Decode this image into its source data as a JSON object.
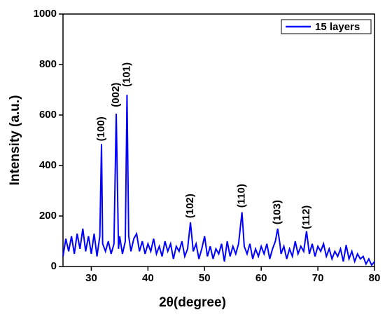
{
  "chart_data": {
    "type": "line",
    "xlabel": "2θ(degree)",
    "ylabel": "Intensity (a.u.)",
    "xlim": [
      25,
      80
    ],
    "xticks": [
      30,
      40,
      50,
      60,
      70,
      80
    ],
    "ylim": [
      0,
      1000
    ],
    "yticks": [
      0,
      200,
      400,
      600,
      800,
      1000
    ],
    "legend": "upper right",
    "series": [
      {
        "name": "15 layers",
        "color": "#0000ff",
        "x": [
          25,
          25.5,
          26,
          26.5,
          27,
          27.5,
          28,
          28.5,
          29,
          29.5,
          30,
          30.5,
          31,
          31.5,
          31.8,
          32,
          32.5,
          33,
          33.5,
          34,
          34.4,
          34.8,
          35,
          35.5,
          36,
          36.3,
          36.6,
          37,
          37.5,
          38,
          38.5,
          39,
          39.5,
          40,
          40.5,
          41,
          41.5,
          42,
          42.5,
          43,
          43.5,
          44,
          44.5,
          45,
          45.5,
          46,
          46.5,
          47,
          47.5,
          48,
          48.5,
          49,
          49.5,
          50,
          50.5,
          51,
          51.5,
          52,
          52.5,
          53,
          53.5,
          54,
          54.5,
          55,
          55.5,
          56,
          56.6,
          57,
          57.5,
          58,
          58.5,
          59,
          59.5,
          60,
          60.5,
          61,
          61.5,
          62,
          62.5,
          62.9,
          63.3,
          63.5,
          64,
          64.5,
          65,
          65.5,
          66,
          66.5,
          67,
          67.5,
          68,
          68.5,
          69,
          69.5,
          70,
          70.5,
          71,
          71.5,
          72,
          72.5,
          73,
          73.5,
          74,
          74.5,
          75,
          75.5,
          76,
          76.5,
          77,
          77.5,
          78,
          78.5,
          79,
          79.5,
          80
        ],
        "values": [
          40,
          110,
          60,
          120,
          50,
          130,
          70,
          150,
          60,
          120,
          50,
          130,
          40,
          120,
          485,
          90,
          60,
          100,
          50,
          90,
          605,
          70,
          120,
          50,
          100,
          680,
          120,
          60,
          110,
          130,
          60,
          100,
          50,
          90,
          60,
          110,
          50,
          80,
          40,
          100,
          60,
          90,
          30,
          80,
          60,
          100,
          40,
          70,
          175,
          60,
          90,
          30,
          70,
          120,
          40,
          80,
          30,
          70,
          50,
          90,
          20,
          100,
          40,
          80,
          50,
          90,
          215,
          80,
          50,
          90,
          30,
          70,
          40,
          80,
          50,
          90,
          30,
          70,
          100,
          150,
          90,
          50,
          80,
          30,
          70,
          40,
          100,
          50,
          80,
          60,
          140,
          50,
          90,
          40,
          80,
          60,
          90,
          40,
          70,
          30,
          60,
          40,
          70,
          20,
          85,
          30,
          60,
          20,
          50,
          30,
          40,
          10,
          30,
          5,
          20
        ]
      }
    ],
    "annotations": [
      {
        "text": "(100)",
        "x": 31.8,
        "y": 545
      },
      {
        "text": "(002)",
        "x": 34.4,
        "y": 680
      },
      {
        "text": "(101)",
        "x": 36.3,
        "y": 760
      },
      {
        "text": "(102)",
        "x": 47.5,
        "y": 240
      },
      {
        "text": "(110)",
        "x": 56.6,
        "y": 280
      },
      {
        "text": "(103)",
        "x": 62.9,
        "y": 215
      },
      {
        "text": "(112)",
        "x": 68.0,
        "y": 195
      }
    ]
  }
}
